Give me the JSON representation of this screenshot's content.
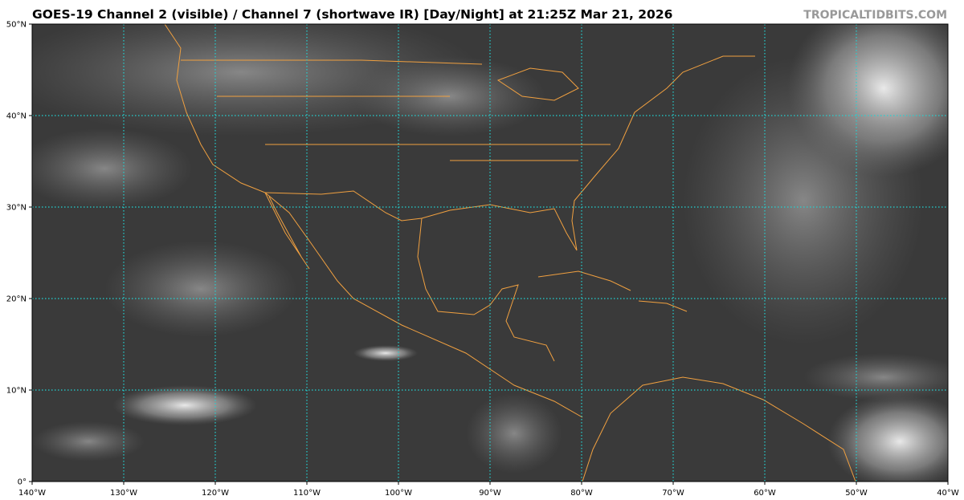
{
  "title": "GOES-19 Channel 2 (visible) / Channel 7 (shortwave IR) [Day/Night] at 21:25Z Mar 21, 2026",
  "watermark": "TROPICALTIDBITS.COM",
  "map": {
    "lon_range": [
      -140,
      -40
    ],
    "lat_range": [
      0,
      50
    ],
    "lon_ticks": [
      -140,
      -130,
      -120,
      -110,
      -100,
      -90,
      -80,
      -70,
      -60,
      -50,
      -40
    ],
    "lon_labels": [
      "140°W",
      "130°W",
      "120°W",
      "110°W",
      "100°W",
      "90°W",
      "80°W",
      "70°W",
      "60°W",
      "50°W",
      "40°W"
    ],
    "lat_ticks": [
      0,
      10,
      20,
      30,
      40,
      50
    ],
    "lat_labels": [
      "0°",
      "10°N",
      "20°N",
      "30°N",
      "40°N",
      "50°N"
    ],
    "gridline_color": "#22d3d3",
    "coastline_color": "#f0a040",
    "background_color": "#3a3a3a"
  }
}
